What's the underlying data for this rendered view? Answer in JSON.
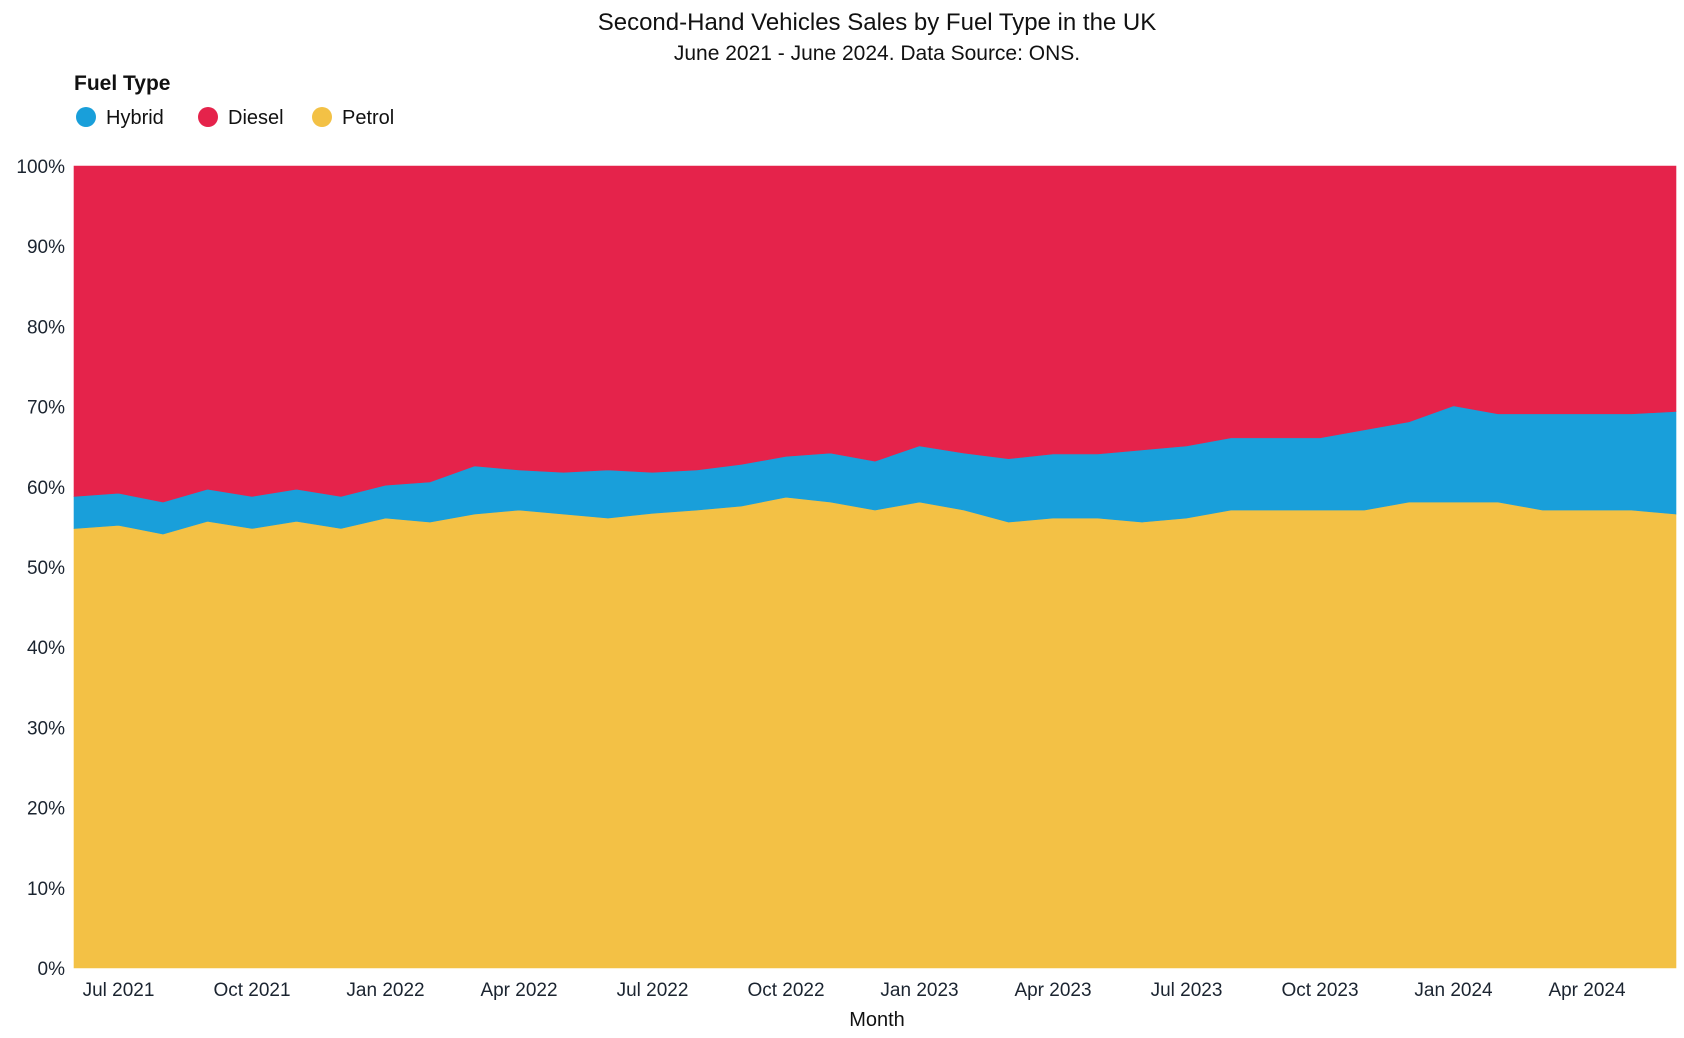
{
  "chart_data": {
    "type": "area",
    "stacked": true,
    "title": "Second-Hand Vehicles Sales by Fuel Type in the UK",
    "subtitle": "June 2021 - June 2024. Data Source: ONS.",
    "xlabel": "Month",
    "ylabel": "",
    "ylim": [
      0,
      100
    ],
    "y_unit": "%",
    "y_ticks": [
      "0%",
      "10%",
      "20%",
      "30%",
      "40%",
      "50%",
      "60%",
      "70%",
      "80%",
      "90%",
      "100%"
    ],
    "legend": {
      "title": "Fuel Type",
      "position": "top-left",
      "entries": [
        "Hybrid",
        "Diesel",
        "Petrol"
      ]
    },
    "x_tick_labels": [
      {
        "label": "Jul 2021",
        "month": "2021-07"
      },
      {
        "label": "Oct 2021",
        "month": "2021-10"
      },
      {
        "label": "Jan 2022",
        "month": "2022-01"
      },
      {
        "label": "Apr 2022",
        "month": "2022-04"
      },
      {
        "label": "Jul 2022",
        "month": "2022-07"
      },
      {
        "label": "Oct 2022",
        "month": "2022-10"
      },
      {
        "label": "Jan 2023",
        "month": "2023-01"
      },
      {
        "label": "Apr 2023",
        "month": "2023-04"
      },
      {
        "label": "Jul 2023",
        "month": "2023-07"
      },
      {
        "label": "Oct 2023",
        "month": "2023-10"
      },
      {
        "label": "Jan 2024",
        "month": "2024-01"
      },
      {
        "label": "Apr 2024",
        "month": "2024-04"
      }
    ],
    "x": [
      "2021-06",
      "2021-07",
      "2021-08",
      "2021-09",
      "2021-10",
      "2021-11",
      "2021-12",
      "2022-01",
      "2022-02",
      "2022-03",
      "2022-04",
      "2022-05",
      "2022-06",
      "2022-07",
      "2022-08",
      "2022-09",
      "2022-10",
      "2022-11",
      "2022-12",
      "2023-01",
      "2023-02",
      "2023-03",
      "2023-04",
      "2023-05",
      "2023-06",
      "2023-07",
      "2023-08",
      "2023-09",
      "2023-10",
      "2023-11",
      "2023-12",
      "2024-01",
      "2024-02",
      "2024-03",
      "2024-04",
      "2024-05",
      "2024-06"
    ],
    "series": [
      {
        "name": "Petrol",
        "color": "#f3c145",
        "values": [
          54.8,
          55.2,
          54.1,
          55.7,
          54.8,
          55.7,
          54.8,
          56.1,
          55.6,
          56.6,
          57.1,
          56.6,
          56.1,
          56.7,
          57.1,
          57.6,
          58.7,
          58.1,
          57.1,
          58.1,
          57.1,
          55.6,
          56.1,
          56.1,
          55.6,
          56.1,
          57.1,
          57.1,
          57.1,
          57.1,
          58.1,
          58.1,
          58.1,
          57.1,
          57.1,
          57.1,
          56.6
        ]
      },
      {
        "name": "Hybrid",
        "color": "#199fda",
        "values": [
          4.0,
          4.0,
          4.0,
          4.0,
          4.0,
          4.0,
          4.0,
          4.1,
          5.0,
          6.0,
          5.0,
          5.2,
          6.0,
          5.1,
          5.0,
          5.2,
          5.1,
          6.1,
          6.1,
          7.0,
          7.1,
          7.9,
          8.0,
          8.0,
          9.0,
          9.0,
          9.0,
          9.0,
          9.0,
          10.0,
          10.0,
          12.0,
          11.0,
          12.0,
          12.0,
          12.0,
          12.8
        ]
      },
      {
        "name": "Diesel",
        "color": "#e5234b",
        "values": [
          41.2,
          40.8,
          41.9,
          40.3,
          41.2,
          40.3,
          41.2,
          39.8,
          39.4,
          37.4,
          37.9,
          38.2,
          37.9,
          38.2,
          37.9,
          37.2,
          36.2,
          35.8,
          36.8,
          34.9,
          35.8,
          36.5,
          35.9,
          35.9,
          35.4,
          34.9,
          33.9,
          33.9,
          33.9,
          32.9,
          31.9,
          29.9,
          30.9,
          30.9,
          30.9,
          30.9,
          30.6
        ]
      }
    ]
  }
}
